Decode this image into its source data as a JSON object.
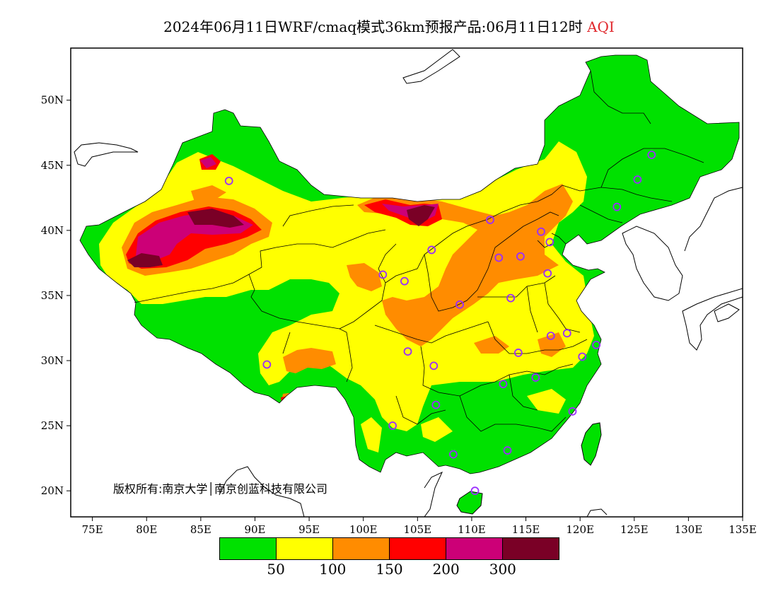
{
  "title": {
    "main": "2024年06月11日WRF/cmaq模式36km预报产品:06月11日12时",
    "variable": "AQI"
  },
  "copyright": "版权所有:南京大学│南京创蓝科技有限公司",
  "axes": {
    "lat_ticks": [
      "50N",
      "45N",
      "40N",
      "35N",
      "30N",
      "25N",
      "20N"
    ],
    "lon_ticks": [
      "75E",
      "80E",
      "85E",
      "90E",
      "95E",
      "100E",
      "105E",
      "110E",
      "115E",
      "120E",
      "125E",
      "130E",
      "135E"
    ],
    "lat_range": [
      18,
      54
    ],
    "lon_range": [
      73,
      135
    ]
  },
  "legend": {
    "colors": [
      "#00e100",
      "#ffff00",
      "#ff8c00",
      "#ff0000",
      "#cc0077",
      "#7a0026"
    ],
    "thresholds": [
      "50",
      "100",
      "150",
      "200",
      "300"
    ]
  },
  "colors": {
    "good": "#00e100",
    "moderate": "#ffff00",
    "usg": "#ff8c00",
    "unhealthy": "#ff0000",
    "very_unhealthy": "#cc0077",
    "hazardous": "#7a0026",
    "station_marker": "#9b2cff"
  },
  "stations": [
    {
      "lon": 126.6,
      "lat": 45.8
    },
    {
      "lon": 125.3,
      "lat": 43.9
    },
    {
      "lon": 123.4,
      "lat": 41.8
    },
    {
      "lon": 87.6,
      "lat": 43.8
    },
    {
      "lon": 111.7,
      "lat": 40.8
    },
    {
      "lon": 116.4,
      "lat": 39.9
    },
    {
      "lon": 117.2,
      "lat": 39.1
    },
    {
      "lon": 106.3,
      "lat": 38.5
    },
    {
      "lon": 112.5,
      "lat": 37.9
    },
    {
      "lon": 114.5,
      "lat": 38.0
    },
    {
      "lon": 117.0,
      "lat": 36.7
    },
    {
      "lon": 101.8,
      "lat": 36.6
    },
    {
      "lon": 103.8,
      "lat": 36.1
    },
    {
      "lon": 108.9,
      "lat": 34.3
    },
    {
      "lon": 113.6,
      "lat": 34.8
    },
    {
      "lon": 117.3,
      "lat": 31.9
    },
    {
      "lon": 118.8,
      "lat": 32.1
    },
    {
      "lon": 121.5,
      "lat": 31.2
    },
    {
      "lon": 120.2,
      "lat": 30.3
    },
    {
      "lon": 114.3,
      "lat": 30.6
    },
    {
      "lon": 104.1,
      "lat": 30.7
    },
    {
      "lon": 106.5,
      "lat": 29.6
    },
    {
      "lon": 91.1,
      "lat": 29.7
    },
    {
      "lon": 112.9,
      "lat": 28.2
    },
    {
      "lon": 115.9,
      "lat": 28.7
    },
    {
      "lon": 106.7,
      "lat": 26.6
    },
    {
      "lon": 102.7,
      "lat": 25.0
    },
    {
      "lon": 119.3,
      "lat": 26.1
    },
    {
      "lon": 113.3,
      "lat": 23.1
    },
    {
      "lon": 108.3,
      "lat": 22.8
    },
    {
      "lon": 110.3,
      "lat": 20.0
    }
  ]
}
